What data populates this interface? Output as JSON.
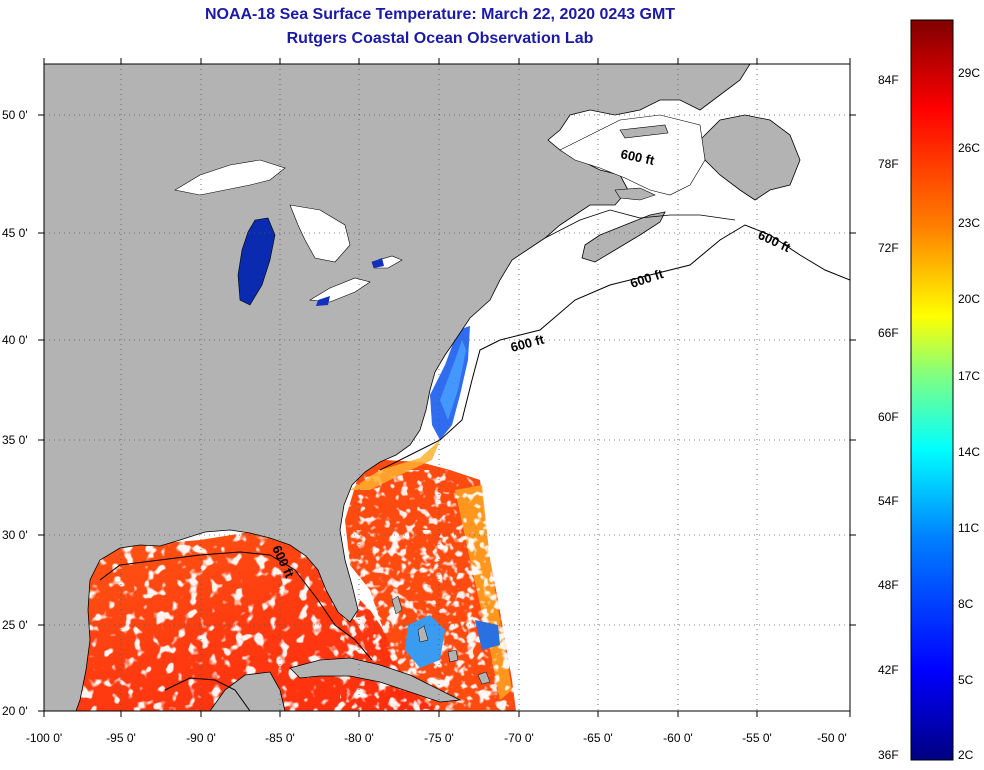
{
  "header": {
    "title": "NOAA-18 Sea Surface Temperature:  March 22, 2020 0243 GMT",
    "subtitle": "Rutgers Coastal Ocean Observation Lab"
  },
  "axes": {
    "lat_labels": [
      "50 0'",
      "45 0'",
      "40 0'",
      "35 0'",
      "30 0'",
      "25 0'",
      "20 0'"
    ],
    "lon_labels": [
      "-100 0'",
      "-95 0'",
      "-90 0'",
      "-85 0'",
      "-80 0'",
      "-75 0'",
      "-70 0'",
      "-65 0'",
      "-60 0'",
      "-55 0'",
      "-50 0'"
    ]
  },
  "map": {
    "land_color": "#b3b3b3",
    "no_data_color": "#ffffff",
    "contour_label": "600 ft",
    "contour_labels": [
      "600 ft",
      "600 ft",
      "600 ft",
      "600 ft",
      "600 ft"
    ]
  },
  "colorbar": {
    "fahrenheit_labels": [
      "84F",
      "78F",
      "72F",
      "66F",
      "60F",
      "54F",
      "48F",
      "42F",
      "36F"
    ],
    "celsius_labels": [
      "29C",
      "26C",
      "23C",
      "20C",
      "17C",
      "14C",
      "11C",
      "8C",
      "5C",
      "2C"
    ],
    "range_c": [
      2,
      31
    ],
    "colors": [
      "#000080",
      "#0000ff",
      "#0080ff",
      "#00ffff",
      "#80ff80",
      "#ffff00",
      "#ff8000",
      "#ff0000",
      "#800000"
    ]
  }
}
